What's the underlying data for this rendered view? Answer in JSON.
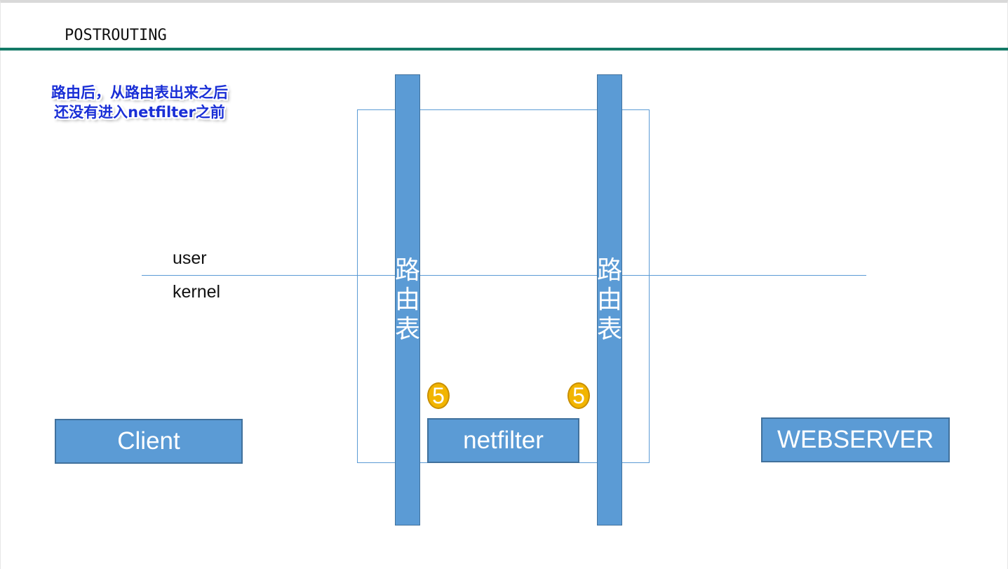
{
  "slide": {
    "title": "POSTROUTING",
    "note": {
      "line1": "路由后，从路由表出来之后",
      "line2": "还没有进入netfilter之前"
    }
  },
  "diagram": {
    "layers": {
      "upper": "user",
      "lower": "kernel"
    },
    "routing_tables": [
      {
        "label": "路由表"
      },
      {
        "label": "路由表"
      }
    ],
    "nodes": {
      "client": "Client",
      "netfilter": "netfilter",
      "webserver": "WEBSERVER"
    },
    "hook_badges": [
      {
        "number": "5"
      },
      {
        "number": "5"
      }
    ]
  },
  "colors": {
    "accent_rule": "#147a67",
    "box_fill": "#5b9bd5",
    "box_border": "#41719c",
    "note_text": "#1a2fd6",
    "badge_fill": "#f2b500"
  }
}
